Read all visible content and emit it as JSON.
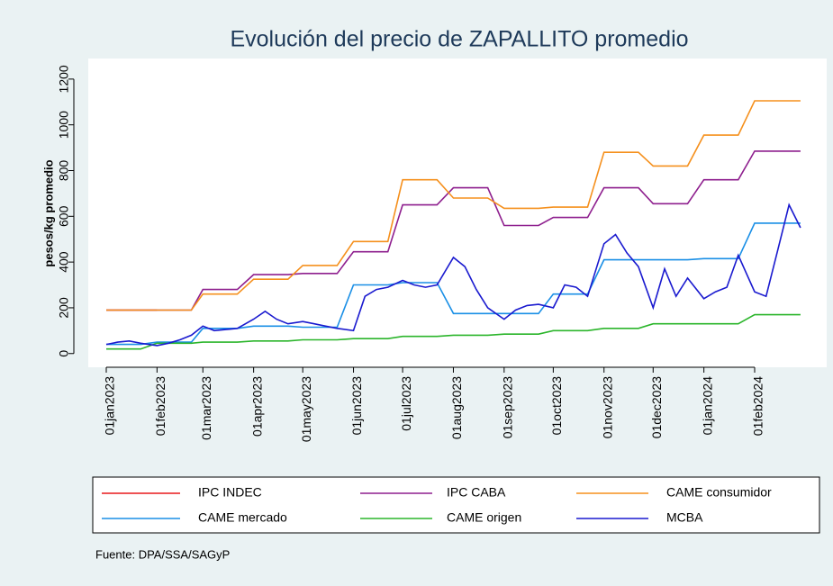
{
  "chart_data": {
    "type": "line",
    "title": "Evolución del precio de ZAPALLITO promedio",
    "y_label": "pesos/kg promedio",
    "source": "Fuente: DPA/SSA/SAGyP",
    "x": [
      "2023-01-01",
      "2023-01-08",
      "2023-01-15",
      "2023-01-22",
      "2023-02-01",
      "2023-02-08",
      "2023-02-15",
      "2023-02-22",
      "2023-03-01",
      "2023-03-08",
      "2023-03-15",
      "2023-03-22",
      "2023-04-01",
      "2023-04-08",
      "2023-04-15",
      "2023-04-22",
      "2023-05-01",
      "2023-05-08",
      "2023-05-15",
      "2023-05-22",
      "2023-06-01",
      "2023-06-08",
      "2023-06-15",
      "2023-06-22",
      "2023-07-01",
      "2023-07-08",
      "2023-07-15",
      "2023-07-22",
      "2023-08-01",
      "2023-08-08",
      "2023-08-15",
      "2023-08-22",
      "2023-09-01",
      "2023-09-08",
      "2023-09-15",
      "2023-09-22",
      "2023-10-01",
      "2023-10-08",
      "2023-10-15",
      "2023-10-22",
      "2023-11-01",
      "2023-11-08",
      "2023-11-15",
      "2023-11-22",
      "2023-12-01",
      "2023-12-08",
      "2023-12-15",
      "2023-12-22",
      "2024-01-01",
      "2024-01-08",
      "2024-01-15",
      "2024-01-22",
      "2024-02-01",
      "2024-02-08",
      "2024-02-15",
      "2024-02-22",
      "2024-02-29"
    ],
    "series": [
      {
        "name": "IPC INDEC",
        "color": "#e8191c",
        "values": [
          190,
          190,
          190,
          190,
          190,
          null,
          null,
          null,
          null,
          null,
          null,
          null,
          null,
          null,
          null,
          null,
          null,
          null,
          null,
          null,
          null,
          null,
          null,
          null,
          null,
          null,
          null,
          null,
          null,
          null,
          null,
          null,
          null,
          null,
          null,
          null,
          null,
          null,
          null,
          null,
          null,
          null,
          null,
          null,
          null,
          null,
          null,
          null,
          null,
          null,
          null,
          null,
          null,
          null,
          null,
          null,
          null
        ]
      },
      {
        "name": "IPC CABA",
        "color": "#8e1f8e",
        "values": [
          190,
          190,
          190,
          190,
          190,
          190,
          190,
          190,
          280,
          280,
          280,
          280,
          345,
          345,
          345,
          345,
          350,
          350,
          350,
          350,
          445,
          445,
          445,
          445,
          650,
          650,
          650,
          650,
          725,
          725,
          725,
          725,
          560,
          560,
          560,
          560,
          595,
          595,
          595,
          595,
          725,
          725,
          725,
          725,
          655,
          655,
          655,
          655,
          760,
          760,
          760,
          760,
          885,
          885,
          885,
          885,
          885
        ]
      },
      {
        "name": "CAME consumidor",
        "color": "#f5901d",
        "values": [
          190,
          190,
          190,
          190,
          190,
          190,
          190,
          190,
          260,
          260,
          260,
          260,
          325,
          325,
          325,
          325,
          385,
          385,
          385,
          385,
          490,
          490,
          490,
          490,
          760,
          760,
          760,
          760,
          680,
          680,
          680,
          680,
          635,
          635,
          635,
          635,
          640,
          640,
          640,
          640,
          880,
          880,
          880,
          880,
          820,
          820,
          820,
          820,
          955,
          955,
          955,
          955,
          1105,
          1105,
          1105,
          1105,
          1105
        ]
      },
      {
        "name": "CAME mercado",
        "color": "#1a8fe6",
        "values": [
          40,
          40,
          40,
          40,
          50,
          50,
          50,
          50,
          110,
          110,
          110,
          110,
          120,
          120,
          120,
          120,
          115,
          115,
          115,
          115,
          300,
          300,
          300,
          300,
          310,
          310,
          310,
          310,
          175,
          175,
          175,
          175,
          175,
          175,
          175,
          175,
          260,
          260,
          260,
          260,
          410,
          410,
          410,
          410,
          410,
          410,
          410,
          410,
          415,
          415,
          415,
          415,
          570,
          570,
          570,
          570,
          570
        ]
      },
      {
        "name": "CAME origen",
        "color": "#2bb52b",
        "values": [
          20,
          20,
          20,
          20,
          45,
          45,
          45,
          45,
          50,
          50,
          50,
          50,
          55,
          55,
          55,
          55,
          60,
          60,
          60,
          60,
          65,
          65,
          65,
          65,
          75,
          75,
          75,
          75,
          80,
          80,
          80,
          80,
          85,
          85,
          85,
          85,
          100,
          100,
          100,
          100,
          110,
          110,
          110,
          110,
          130,
          130,
          130,
          130,
          130,
          130,
          130,
          130,
          170,
          170,
          170,
          170,
          170
        ]
      },
      {
        "name": "MCBA",
        "color": "#1a1acf",
        "values": [
          40,
          50,
          55,
          45,
          35,
          45,
          60,
          80,
          120,
          100,
          105,
          110,
          150,
          185,
          150,
          130,
          140,
          130,
          120,
          110,
          100,
          250,
          280,
          290,
          320,
          300,
          290,
          300,
          420,
          380,
          280,
          200,
          150,
          190,
          210,
          215,
          200,
          300,
          290,
          250,
          480,
          520,
          440,
          380,
          200,
          370,
          250,
          330,
          240,
          270,
          290,
          430,
          270,
          250,
          450,
          650,
          550
        ]
      }
    ],
    "xlim": [
      "2022-12-21",
      "2024-03-16"
    ],
    "xticks": [
      {
        "value": "2023-01-01",
        "label": "01jan2023"
      },
      {
        "value": "2023-02-01",
        "label": "01feb2023"
      },
      {
        "value": "2023-03-01",
        "label": "01mar2023"
      },
      {
        "value": "2023-04-01",
        "label": "01apr2023"
      },
      {
        "value": "2023-05-01",
        "label": "01may2023"
      },
      {
        "value": "2023-06-01",
        "label": "01jun2023"
      },
      {
        "value": "2023-07-01",
        "label": "01jul2023"
      },
      {
        "value": "2023-08-01",
        "label": "01aug2023"
      },
      {
        "value": "2023-09-01",
        "label": "01sep2023"
      },
      {
        "value": "2023-10-01",
        "label": "01oct2023"
      },
      {
        "value": "2023-11-01",
        "label": "01nov2023"
      },
      {
        "value": "2023-12-01",
        "label": "01dec2023"
      },
      {
        "value": "2024-01-01",
        "label": "01jan2024"
      },
      {
        "value": "2024-02-01",
        "label": "01feb2024"
      }
    ],
    "ylim": [
      -60,
      1290
    ],
    "yticks": [
      0,
      200,
      400,
      600,
      800,
      1000,
      1200
    ]
  }
}
